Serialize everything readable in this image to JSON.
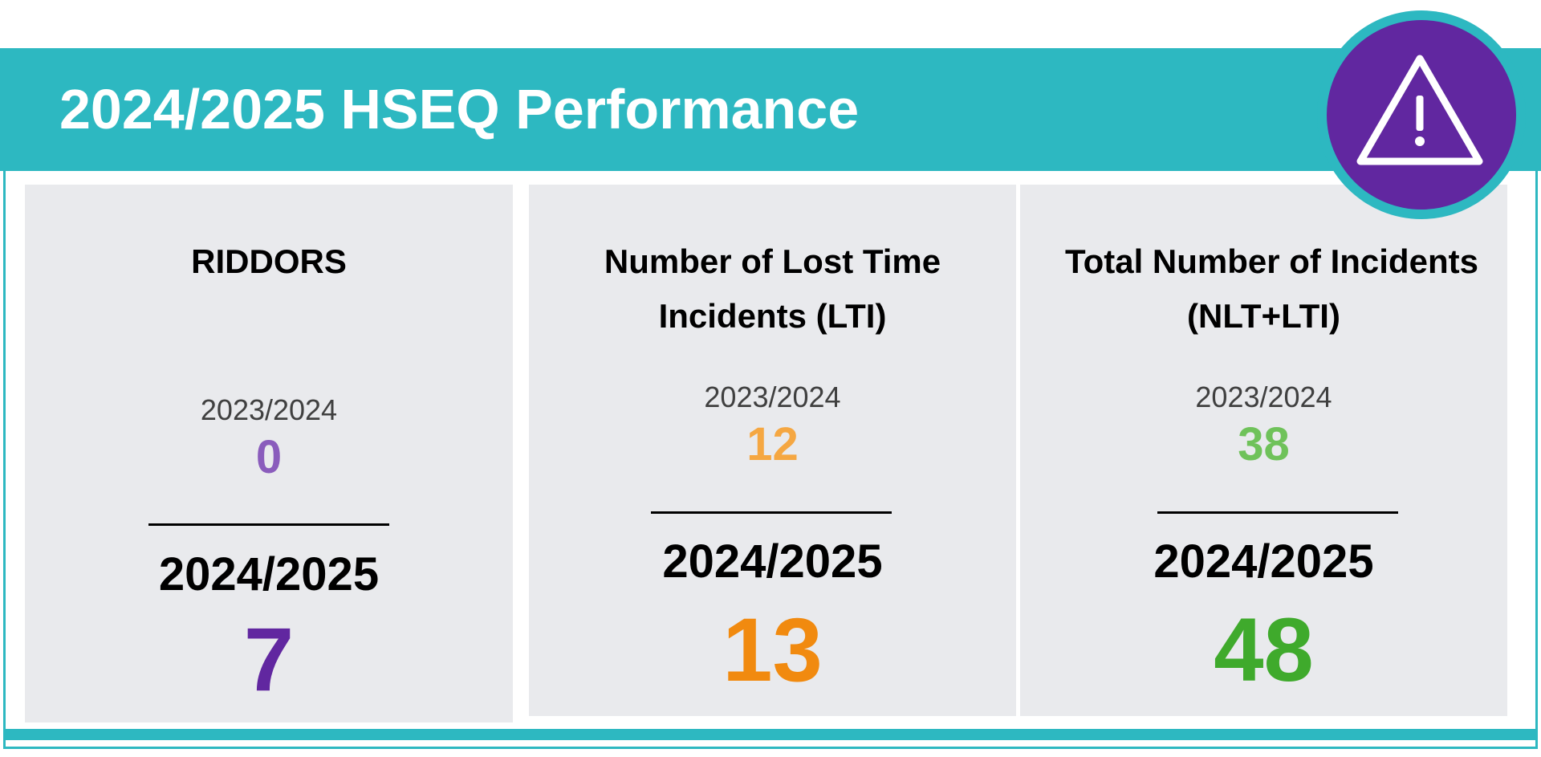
{
  "header": {
    "title": "2024/2025 HSEQ Performance",
    "badge_icon": "warning-triangle-icon"
  },
  "colors": {
    "header_bg": "#2db8c1",
    "badge_bg": "#6127a0",
    "card_bg": "#e9eaed"
  },
  "cards": [
    {
      "title_line1": "RIDDORS",
      "title_line2": "",
      "prev_label": "2023/2024",
      "prev_value": "0",
      "curr_label": "2024/2025",
      "curr_value": "7",
      "prev_color": "#8a5cbc",
      "curr_color": "#6127a0"
    },
    {
      "title_line1": "Number of Lost Time",
      "title_line2": "Incidents (LTI)",
      "prev_label": "2023/2024",
      "prev_value": "12",
      "curr_label": "2024/2025",
      "curr_value": "13",
      "prev_color": "#f5a742",
      "curr_color": "#f18a0f"
    },
    {
      "title_line1": "Total Number of Incidents",
      "title_line2": "(NLT+LTI)",
      "prev_label": "2023/2024",
      "prev_value": "38",
      "curr_label": "2024/2025",
      "curr_value": "48",
      "prev_color": "#6fc25a",
      "curr_color": "#3faa2c"
    }
  ]
}
